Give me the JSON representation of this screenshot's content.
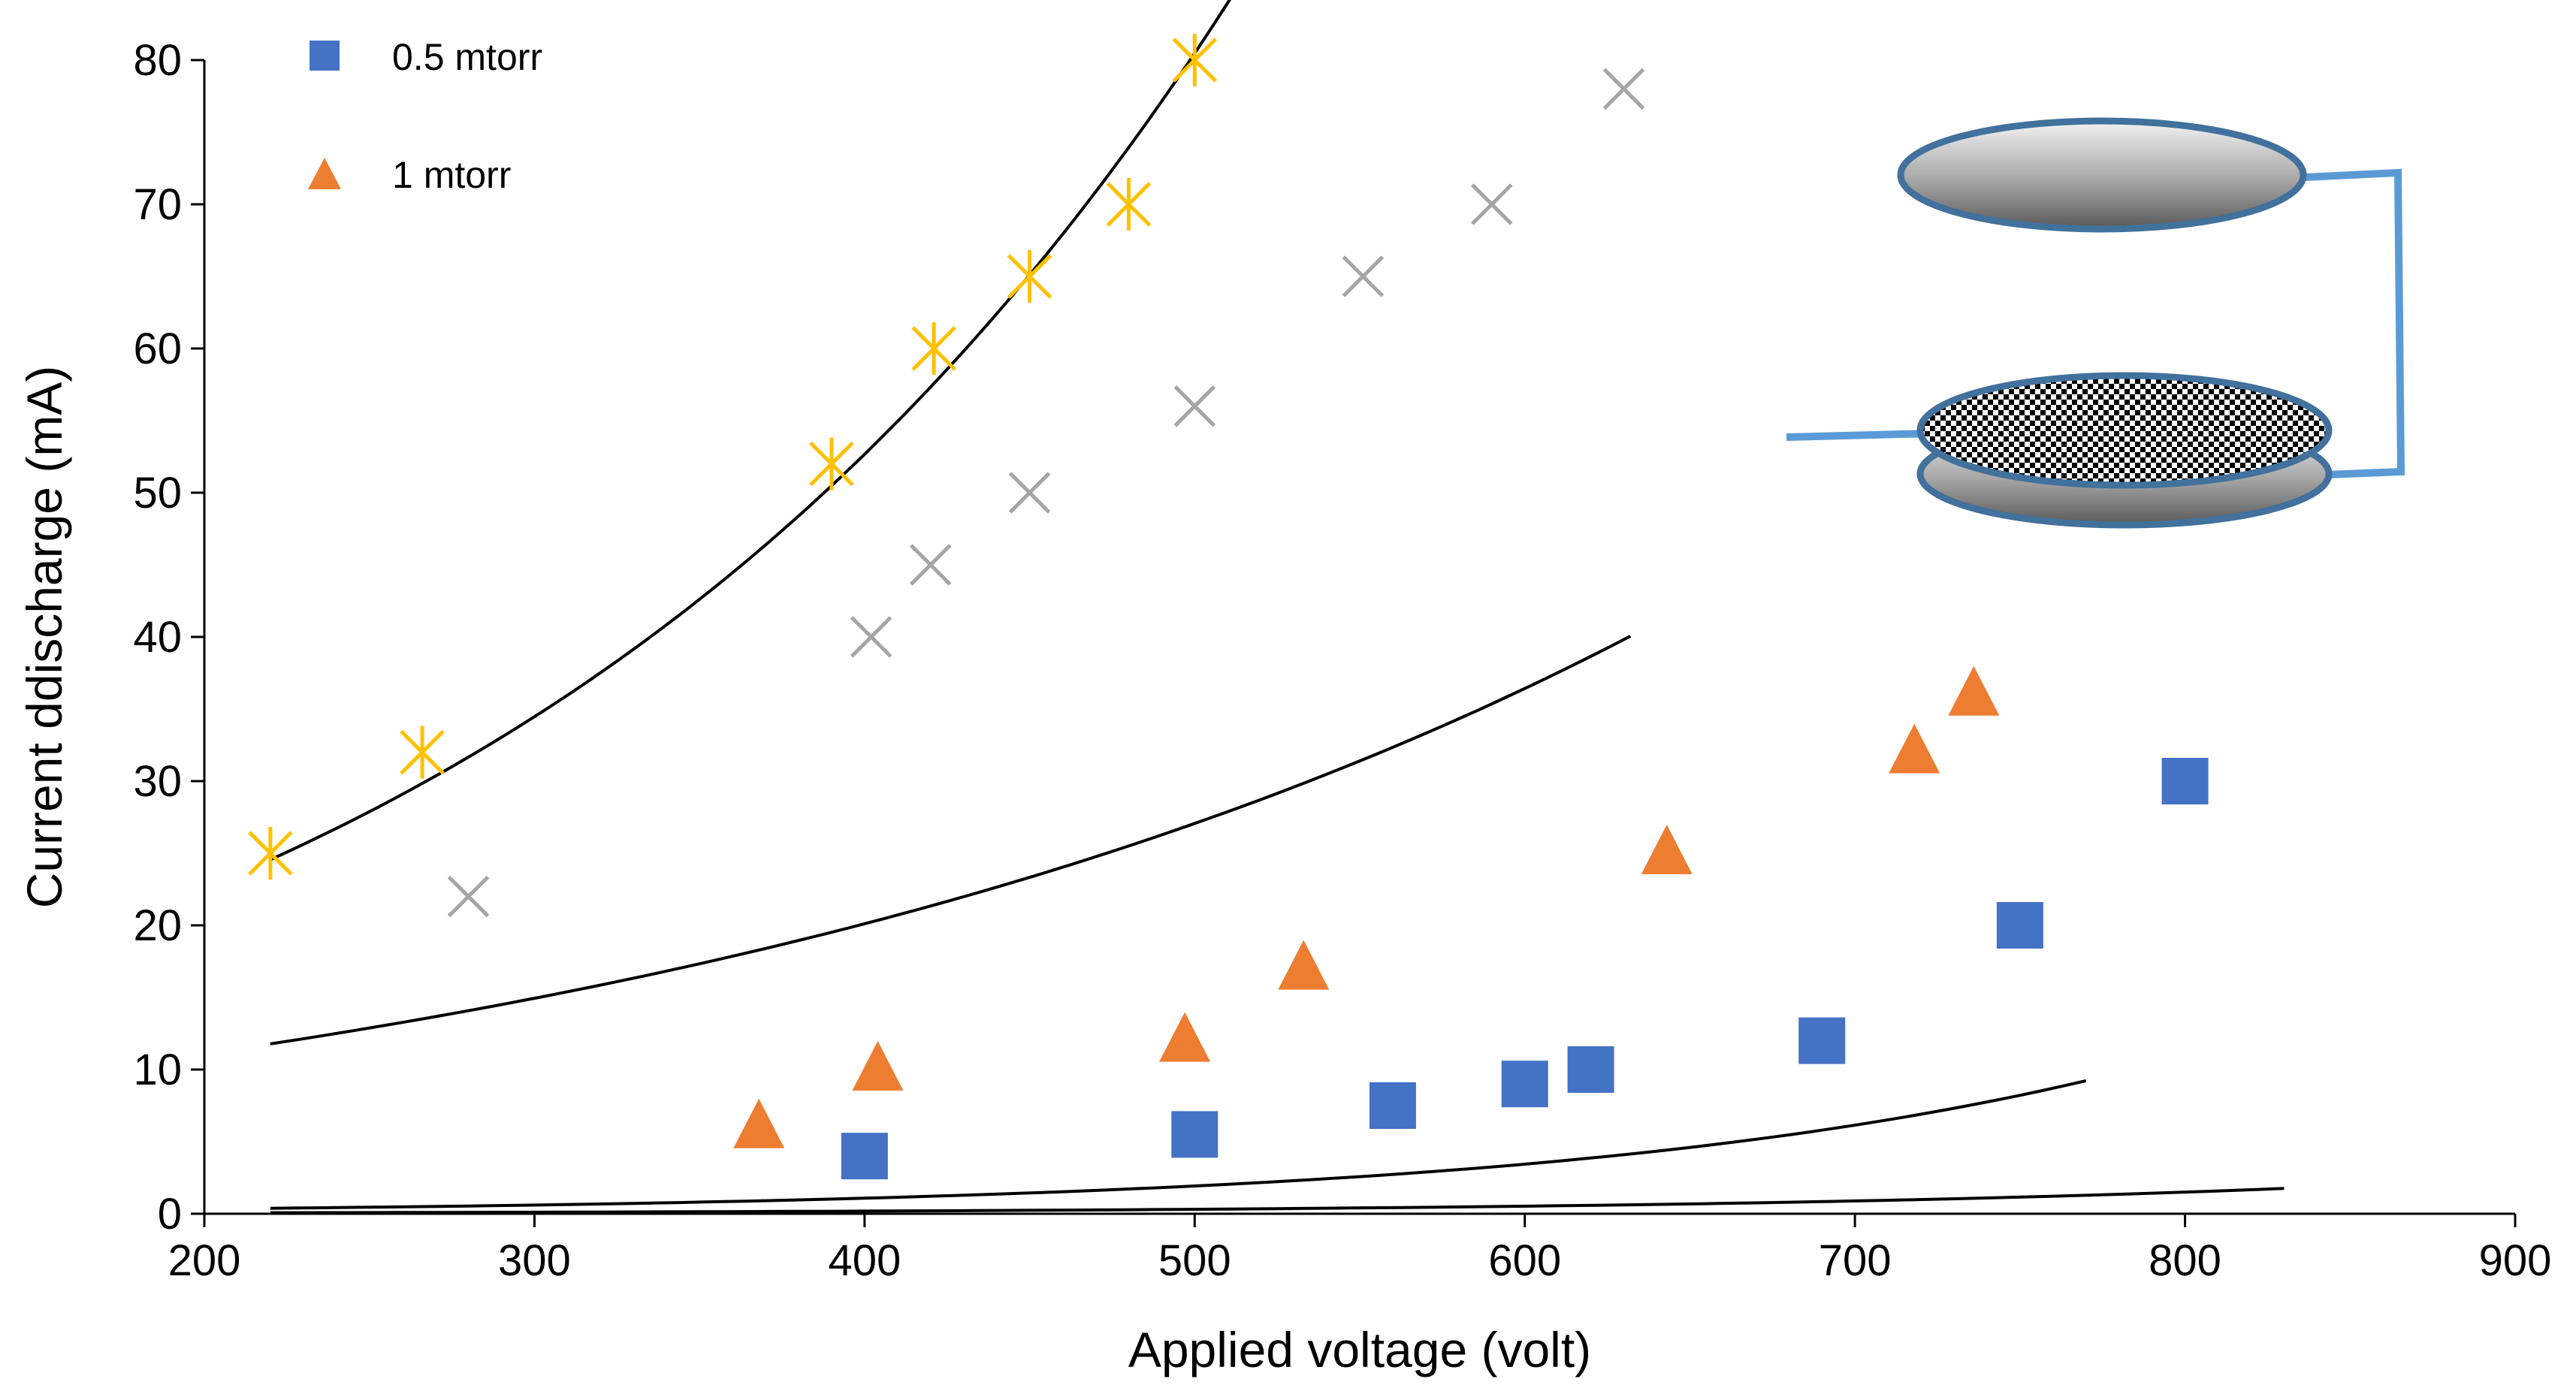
{
  "chart_data": {
    "type": "scatter",
    "title": "",
    "xlabel": "Applied voltage (volt)",
    "ylabel": "Current ddischarge (mA)",
    "xlim": [
      200,
      900
    ],
    "ylim": [
      0,
      80
    ],
    "xticks": [
      "200",
      "300",
      "400",
      "500",
      "600",
      "700",
      "800",
      "900"
    ],
    "yticks": [
      "0",
      "10",
      "20",
      "30",
      "40",
      "50",
      "60",
      "70",
      "80"
    ],
    "grid": false,
    "legend_position": "top-left",
    "series": [
      {
        "name": "0.5 mtorr",
        "marker": "square",
        "color": "#4472C4",
        "x": [
          400,
          500,
          560,
          600,
          620,
          690,
          750,
          800
        ],
        "y": [
          4,
          5.5,
          7.5,
          9,
          10,
          12,
          20,
          30
        ],
        "trendline": {
          "x": [
            220,
            830
          ],
          "a": 0.0225,
          "b": 0.00525
        }
      },
      {
        "name": "1 mtorr",
        "marker": "triangle",
        "color": "#ED7D31",
        "x": [
          368,
          404,
          497,
          533,
          643,
          718,
          736
        ],
        "y": [
          6,
          10,
          12,
          17,
          25,
          32,
          36
        ],
        "trendline": {
          "x": [
            220,
            770
          ],
          "a": 0.106,
          "b": 0.0058
        }
      },
      {
        "name": "",
        "marker": "x",
        "color": "#A5A5A5",
        "x": [
          280,
          402,
          420,
          450,
          500,
          551,
          590,
          630
        ],
        "y": [
          22,
          40,
          45,
          50,
          56,
          65,
          70,
          78
        ],
        "trendline": {
          "x": [
            220,
            632
          ],
          "a": 6.13,
          "b": 0.00297
        }
      },
      {
        "name": "",
        "marker": "asterisk",
        "color": "#FFC000",
        "x": [
          220,
          266,
          390,
          421,
          450,
          480,
          500
        ],
        "y": [
          25,
          32,
          52,
          60,
          65,
          70,
          80
        ],
        "trendline": {
          "x": [
            220,
            520
          ],
          "a": 9.66,
          "b": 0.00424
        }
      }
    ]
  },
  "inset": {
    "description_icon": "electrode-plates-icon",
    "plate_color": "#41719C",
    "wire_color": "#5B9BD5"
  }
}
